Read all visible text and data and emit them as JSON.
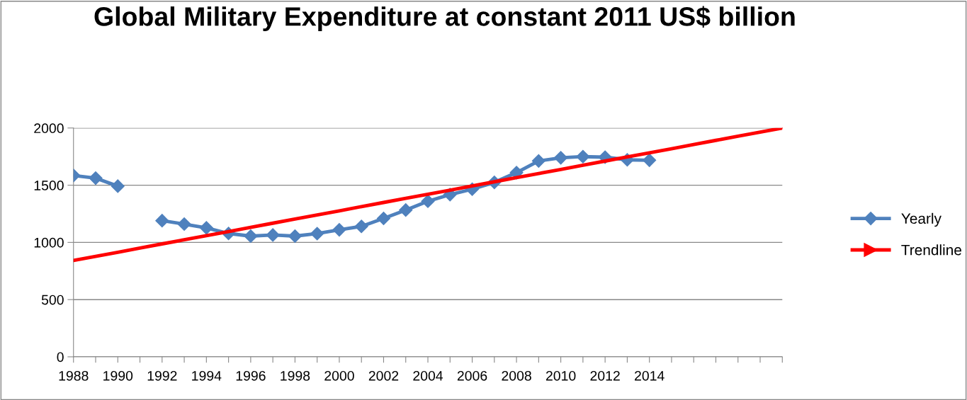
{
  "chart_data": {
    "type": "line",
    "title": "Global Military Expenditure at constant 2011 US$ billion",
    "categories": [
      "1988",
      null,
      "1990",
      null,
      "1992",
      null,
      "1994",
      null,
      "1996",
      null,
      "1998",
      null,
      "2000",
      null,
      "2002",
      null,
      "2004",
      null,
      "2006",
      null,
      "2008",
      null,
      "2010",
      null,
      "2012",
      null,
      "2014",
      null,
      null,
      null,
      null,
      null,
      null
    ],
    "series": [
      {
        "name": "Yearly",
        "color": "#4f81bd",
        "marker": "diamond",
        "values": [
          1585,
          1562,
          1492,
          null,
          1190,
          1160,
          1127,
          1078,
          1055,
          1065,
          1055,
          1077,
          1110,
          1140,
          1210,
          1283,
          1360,
          1418,
          1465,
          1525,
          1610,
          1712,
          1740,
          1750,
          1745,
          1722,
          1718,
          null,
          null,
          null,
          null,
          null,
          null
        ]
      },
      {
        "name": "Trendline",
        "color": "#ff0000",
        "marker": "none",
        "values": [
          842,
          878,
          914,
          951,
          987,
          1023,
          1059,
          1095,
          1132,
          1168,
          1204,
          1240,
          1276,
          1313,
          1349,
          1385,
          1421,
          1457,
          1494,
          1530,
          1566,
          1602,
          1638,
          1675,
          1711,
          1747,
          1783,
          1819,
          1856,
          1892,
          1928,
          1964,
          2000
        ]
      }
    ],
    "ylim": [
      0,
      2000
    ],
    "yticks": [
      0,
      500,
      1000,
      1500,
      2000
    ],
    "grid": "y",
    "legend": "right"
  }
}
